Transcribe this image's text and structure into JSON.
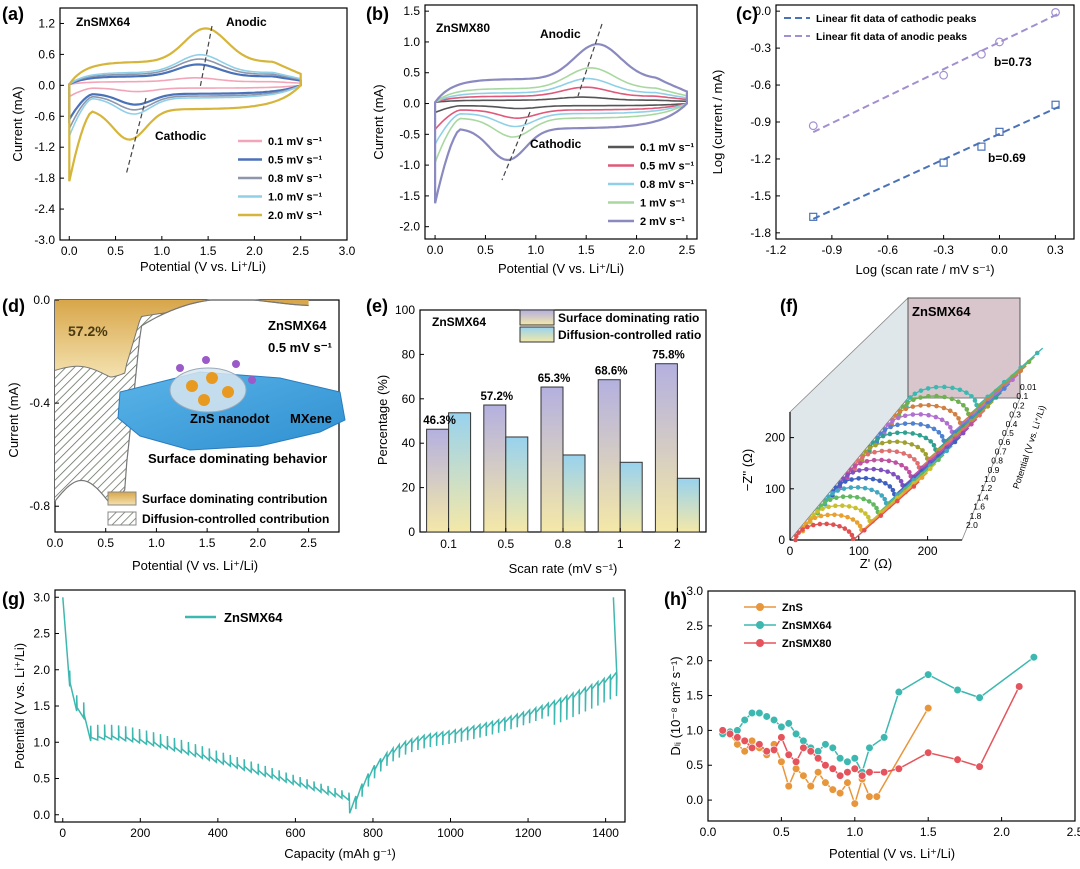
{
  "panels": {
    "a": {
      "panel_label": "(a)",
      "sample": "ZnSMX64",
      "annot_anodic": "Anodic",
      "annot_cathodic": "Cathodic",
      "xlabel": "Potential (V vs. Li⁺/Li)",
      "ylabel": "Current (mA)",
      "xticks": [
        "0.0",
        "0.5",
        "1.0",
        "1.5",
        "2.0",
        "2.5",
        "3.0"
      ],
      "yticks": [
        "1.2",
        "0.6",
        "0.0",
        "-0.6",
        "-1.2",
        "-1.8",
        "-2.4",
        "-3.0"
      ],
      "legend": [
        "0.1 mV s⁻¹",
        "0.5 mV s⁻¹",
        "0.8 mV s⁻¹",
        "1.0 mV s⁻¹",
        "2.0 mV s⁻¹"
      ]
    },
    "b": {
      "panel_label": "(b)",
      "sample": "ZnSMX80",
      "annot_anodic": "Anodic",
      "annot_cathodic": "Cathodic",
      "xlabel": "Potential (V vs. Li⁺/Li)",
      "ylabel": "Current (mA)",
      "xticks": [
        "0.0",
        "0.5",
        "1.0",
        "1.5",
        "2.0",
        "2.5"
      ],
      "yticks": [
        "1.5",
        "1.0",
        "0.5",
        "0.0",
        "-0.5",
        "-1.0",
        "-1.5",
        "-2.0"
      ],
      "legend": [
        "0.1 mV s⁻¹",
        "0.5 mV s⁻¹",
        "0.8 mV s⁻¹",
        "1 mV s⁻¹",
        "2 mV s⁻¹"
      ]
    },
    "c": {
      "panel_label": "(c)",
      "xlabel": "Log (scan rate / mV s⁻¹)",
      "ylabel": "Log (current / mA)",
      "xticks": [
        "-1.2",
        "-0.9",
        "-0.6",
        "-0.3",
        "0.0",
        "0.3"
      ],
      "yticks": [
        "0.0",
        "-0.3",
        "-0.6",
        "-0.9",
        "-1.2",
        "-1.5",
        "-1.8"
      ],
      "legend": [
        "Linear fit data of cathodic peaks",
        "Linear fit data of anodic peaks"
      ],
      "b_anodic": "b=0.73",
      "b_cathodic": "b=0.69"
    },
    "d": {
      "panel_label": "(d)",
      "sample": "ZnSMX64",
      "rate": "0.5 mV s⁻¹",
      "percent": "57.2%",
      "nanodot_label": "ZnS nanodot",
      "mxene_label": "MXene",
      "behavior": "Surface dominating behavior",
      "xlabel": "Potential (V vs. Li⁺/Li)",
      "ylabel": "Current (mA)",
      "xticks": [
        "0.0",
        "0.5",
        "1.0",
        "1.5",
        "2.0",
        "2.5"
      ],
      "yticks": [
        "0.0",
        "-0.4",
        "-0.8"
      ],
      "legend": [
        "Surface dominating contribution",
        "Diffusion-controlled contribution"
      ]
    },
    "e": {
      "panel_label": "(e)",
      "sample": "ZnSMX64",
      "xlabel": "Scan rate (mV s⁻¹)",
      "ylabel": "Percentage (%)",
      "xticks": [
        "0.1",
        "0.5",
        "0.8",
        "1",
        "2"
      ],
      "yticks": [
        "100",
        "80",
        "60",
        "40",
        "20",
        "0"
      ],
      "legend": [
        "Surface dominating ratio",
        "Diffusion-controlled ratio"
      ],
      "bar_labels": [
        "46.3%",
        "57.2%",
        "65.3%",
        "68.6%",
        "75.8%"
      ]
    },
    "f": {
      "panel_label": "(f)",
      "sample": "ZnSMX64",
      "xlabel": "Z' (Ω)",
      "ylabel": "−Z'' (Ω)",
      "xticks": [
        "0",
        "100",
        "200"
      ],
      "yticks": [
        "200",
        "100",
        "0"
      ],
      "depth_label": "Potential (V vs. Li⁺/Li)",
      "depth_ticks": [
        "0.01",
        "0.1",
        "0.2",
        "0.3",
        "0.4",
        "0.5",
        "0.6",
        "0.7",
        "0.8",
        "0.9",
        "1.0",
        "1.2",
        "1.4",
        "1.6",
        "1.8",
        "2.0"
      ]
    },
    "g": {
      "panel_label": "(g)",
      "legend": "ZnSMX64",
      "xlabel": "Capacity (mAh g⁻¹)",
      "ylabel": "Potential (V vs. Li⁺/Li)",
      "xticks": [
        "0",
        "200",
        "400",
        "600",
        "800",
        "1000",
        "1200",
        "1400"
      ],
      "yticks": [
        "3.0",
        "2.5",
        "2.0",
        "1.5",
        "1.0",
        "0.5",
        "0.0"
      ]
    },
    "h": {
      "panel_label": "(h)",
      "xlabel": "Potential (V vs. Li⁺/Li)",
      "ylabel": "Dₗᵢ (10⁻⁸ cm² s⁻¹)",
      "xticks": [
        "0.0",
        "0.5",
        "1.0",
        "1.5",
        "2.0",
        "2.5"
      ],
      "yticks": [
        "3.0",
        "2.5",
        "2.0",
        "1.5",
        "1.0",
        "0.5",
        "0.0"
      ],
      "legend": [
        "ZnS",
        "ZnSMX64",
        "ZnSMX80"
      ]
    }
  },
  "colors": {
    "pink": "#f2a5b8",
    "blue": "#4a72b8",
    "gray": "#8e96ab",
    "lightblue": "#8fd0e8",
    "gold": "#d6b53a",
    "dark": "#555555",
    "red": "#e0587a",
    "green": "#a8d8a0",
    "purple": "#8a8ac0",
    "lavender": "#a28fd0",
    "teal": "#3db8b0",
    "orange": "#e8963c",
    "salmon": "#e5545c",
    "bar_purple": "#b8b8e0",
    "bar_blue": "#a8d8ee",
    "bar_yellow": "#f4e6a0"
  },
  "chart_data": [
    {
      "id": "a",
      "type": "line",
      "xlim": [
        -0.1,
        3.0
      ],
      "ylim": [
        -3.0,
        1.5
      ],
      "series": [
        {
          "name": "0.1 mV s⁻¹",
          "scale": 0.18
        },
        {
          "name": "0.5 mV s⁻¹",
          "scale": 0.55
        },
        {
          "name": "0.8 mV s⁻¹",
          "scale": 0.7
        },
        {
          "name": "1.0 mV s⁻¹",
          "scale": 0.82
        },
        {
          "name": "2.0 mV s⁻¹",
          "scale": 1.55
        }
      ]
    },
    {
      "id": "b",
      "type": "line",
      "xlim": [
        -0.1,
        2.6
      ],
      "ylim": [
        -2.2,
        1.6
      ],
      "series": [
        {
          "name": "0.1 mV s⁻¹",
          "scale": 0.12
        },
        {
          "name": "0.5 mV s⁻¹",
          "scale": 0.35
        },
        {
          "name": "0.8 mV s⁻¹",
          "scale": 0.55
        },
        {
          "name": "1 mV s⁻¹",
          "scale": 0.8
        },
        {
          "name": "2 mV s⁻¹",
          "scale": 1.35
        }
      ]
    },
    {
      "id": "c",
      "type": "scatter",
      "xlim": [
        -1.2,
        0.4
      ],
      "ylim": [
        -1.85,
        0.05
      ],
      "series": [
        {
          "name": "Linear fit data of cathodic peaks",
          "x": [
            -1.0,
            -0.3,
            -0.097,
            0.0,
            0.301
          ],
          "y": [
            -1.67,
            -1.23,
            -1.1,
            -0.98,
            -0.76
          ],
          "slope": 0.69
        },
        {
          "name": "Linear fit data of anodic peaks",
          "x": [
            -1.0,
            -0.3,
            -0.097,
            0.0,
            0.301
          ],
          "y": [
            -0.93,
            -0.52,
            -0.35,
            -0.25,
            -0.01
          ],
          "slope": 0.73
        }
      ]
    },
    {
      "id": "d",
      "type": "area",
      "xlim": [
        0.0,
        2.8
      ],
      "ylim": [
        -0.9,
        0.0
      ],
      "series": [
        {
          "name": "Surface dominating contribution"
        },
        {
          "name": "Diffusion-controlled contribution"
        }
      ]
    },
    {
      "id": "e",
      "type": "bar",
      "categories": [
        "0.1",
        "0.5",
        "0.8",
        "1",
        "2"
      ],
      "ylim": [
        0,
        100
      ],
      "series": [
        {
          "name": "Surface dominating ratio",
          "values": [
            46.3,
            57.2,
            65.3,
            68.6,
            75.8
          ]
        },
        {
          "name": "Diffusion-controlled ratio",
          "values": [
            53.7,
            42.8,
            34.7,
            31.4,
            24.2
          ]
        }
      ]
    },
    {
      "id": "f",
      "type": "line",
      "xlim": [
        0,
        250
      ],
      "ylim": [
        0,
        250
      ],
      "potentials": [
        0.01,
        0.1,
        0.2,
        0.3,
        0.4,
        0.5,
        0.6,
        0.7,
        0.8,
        0.9,
        1.0,
        1.2,
        1.4,
        1.6,
        1.8,
        2.0
      ]
    },
    {
      "id": "g",
      "type": "line",
      "xlim": [
        -20,
        1450
      ],
      "ylim": [
        -0.1,
        3.1
      ],
      "series": [
        {
          "name": "ZnSMX64"
        }
      ]
    },
    {
      "id": "h",
      "type": "line",
      "xlim": [
        0.0,
        2.5
      ],
      "ylim": [
        -0.3,
        3.0
      ],
      "series": [
        {
          "name": "ZnS",
          "x": [
            0.15,
            0.2,
            0.25,
            0.3,
            0.35,
            0.4,
            0.45,
            0.5,
            0.55,
            0.6,
            0.65,
            0.7,
            0.75,
            0.8,
            0.85,
            0.9,
            0.95,
            1.0,
            1.05,
            1.1,
            1.15,
            1.5
          ],
          "y": [
            0.95,
            0.8,
            0.7,
            0.85,
            0.75,
            0.65,
            0.8,
            0.55,
            0.2,
            0.45,
            0.35,
            0.2,
            0.4,
            0.25,
            0.15,
            0.1,
            0.25,
            -0.05,
            0.3,
            0.05,
            0.05,
            1.32
          ]
        },
        {
          "name": "ZnSMX64",
          "x": [
            0.1,
            0.15,
            0.2,
            0.25,
            0.3,
            0.35,
            0.4,
            0.45,
            0.5,
            0.55,
            0.6,
            0.65,
            0.7,
            0.75,
            0.8,
            0.85,
            0.9,
            0.95,
            1.0,
            1.05,
            1.1,
            1.2,
            1.3,
            1.5,
            1.7,
            1.85,
            2.22
          ],
          "y": [
            0.95,
            0.98,
            1.0,
            1.15,
            1.25,
            1.25,
            1.2,
            1.15,
            1.05,
            1.1,
            0.95,
            0.85,
            0.75,
            0.7,
            0.8,
            0.75,
            0.6,
            0.55,
            0.6,
            0.4,
            0.75,
            0.9,
            1.55,
            1.8,
            1.58,
            1.47,
            2.05
          ]
        },
        {
          "name": "ZnSMX80",
          "x": [
            0.1,
            0.15,
            0.2,
            0.25,
            0.3,
            0.35,
            0.4,
            0.45,
            0.5,
            0.55,
            0.6,
            0.65,
            0.7,
            0.75,
            0.8,
            0.85,
            0.9,
            0.95,
            1.0,
            1.05,
            1.1,
            1.2,
            1.3,
            1.5,
            1.7,
            1.85,
            2.12
          ],
          "y": [
            1.0,
            0.95,
            0.9,
            0.85,
            0.75,
            0.8,
            0.7,
            0.72,
            0.9,
            0.65,
            0.55,
            0.75,
            0.7,
            0.6,
            0.5,
            0.45,
            0.35,
            0.4,
            0.45,
            0.35,
            0.4,
            0.4,
            0.45,
            0.68,
            0.58,
            0.48,
            1.63
          ]
        }
      ]
    }
  ]
}
